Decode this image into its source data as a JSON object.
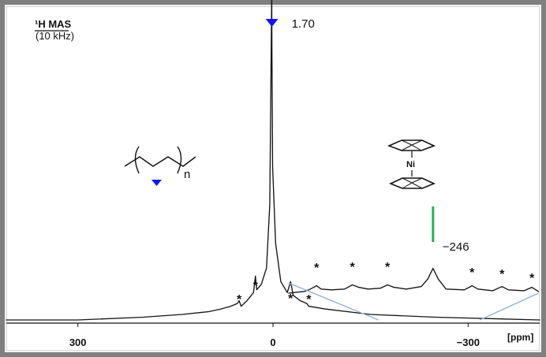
{
  "chart_data": {
    "type": "line",
    "title": "¹H MAS",
    "subtitle": "(10 kHz)",
    "xlabel": "[ppm]",
    "xlim": [
      410,
      -410
    ],
    "x_ticks": [
      300,
      0,
      -300
    ],
    "x_tick_labels": [
      "300",
      "0",
      "−300"
    ],
    "grid": false,
    "series": [
      {
        "values": [
          [
            410,
            0.0
          ],
          [
            300,
            0.0
          ],
          [
            200,
            0.01
          ],
          [
            140,
            0.02
          ],
          [
            100,
            0.03
          ],
          [
            80,
            0.04
          ],
          [
            65,
            0.05
          ],
          [
            55,
            0.06
          ],
          [
            52,
            0.07
          ],
          [
            49,
            0.05
          ],
          [
            40,
            0.07
          ],
          [
            30,
            0.1
          ],
          [
            27,
            0.16
          ],
          [
            25,
            0.11
          ],
          [
            18,
            0.13
          ],
          [
            10,
            0.19
          ],
          [
            5,
            0.42
          ],
          [
            2,
            1.2
          ],
          [
            1.7,
            1.0
          ],
          [
            0.6,
            0.56
          ],
          [
            -4,
            0.28
          ],
          [
            -12,
            0.14
          ],
          [
            -22,
            0.1
          ],
          [
            -27,
            0.14
          ],
          [
            -31,
            0.09
          ],
          [
            -42,
            0.07
          ],
          [
            -52,
            0.06
          ],
          [
            -55,
            0.05
          ],
          [
            -80,
            0.04
          ],
          [
            -150,
            0.02
          ],
          [
            -250,
            0.01
          ],
          [
            -410,
            0.0
          ]
        ]
      },
      {
        "values": [
          [
            -24,
            0.0
          ],
          [
            -35,
            0.01
          ],
          [
            -48,
            0.02
          ],
          [
            -55,
            0.04
          ],
          [
            -60,
            0.06
          ],
          [
            -67,
            0.09
          ],
          [
            -74,
            0.05
          ],
          [
            -90,
            0.04
          ],
          [
            -110,
            0.05
          ],
          [
            -122,
            0.1
          ],
          [
            -132,
            0.07
          ],
          [
            -146,
            0.05
          ],
          [
            -165,
            0.06
          ],
          [
            -176,
            0.1
          ],
          [
            -186,
            0.07
          ],
          [
            -205,
            0.05
          ],
          [
            -228,
            0.08
          ],
          [
            -238,
            0.17
          ],
          [
            -246,
            0.3
          ],
          [
            -254,
            0.17
          ],
          [
            -266,
            0.05
          ],
          [
            -294,
            0.04
          ],
          [
            -306,
            0.09
          ],
          [
            -315,
            0.05
          ],
          [
            -338,
            0.03
          ],
          [
            -352,
            0.08
          ],
          [
            -362,
            0.04
          ],
          [
            -386,
            0.03
          ],
          [
            -398,
            0.07
          ],
          [
            -408,
            0.02
          ]
        ]
      }
    ],
    "annotations": [
      {
        "text": "1.70",
        "x": 1.7,
        "marker": "blue-down-triangle"
      },
      {
        "text": "−246",
        "x": -246,
        "marker": "green-line"
      },
      {
        "text": "n",
        "marker": "polymer-repeat-unit"
      },
      {
        "text": "Ni",
        "marker": "nickelocene"
      },
      {
        "text": "*",
        "x": 52
      },
      {
        "text": "*",
        "x": 27
      },
      {
        "text": "*",
        "x": -27
      },
      {
        "text": "*",
        "x": -55
      },
      {
        "text": "*",
        "x": -67
      },
      {
        "text": "*",
        "x": -122
      },
      {
        "text": "*",
        "x": -176
      },
      {
        "text": "*",
        "x": -306
      },
      {
        "text": "*",
        "x": -352
      },
      {
        "text": "*",
        "x": -398
      }
    ],
    "colors": {
      "main_line": "#151515",
      "inset_line": "#151515",
      "blue_marker": "#1414ff",
      "green_marker": "#24b34b",
      "guide_line": "#8fb3df"
    }
  }
}
